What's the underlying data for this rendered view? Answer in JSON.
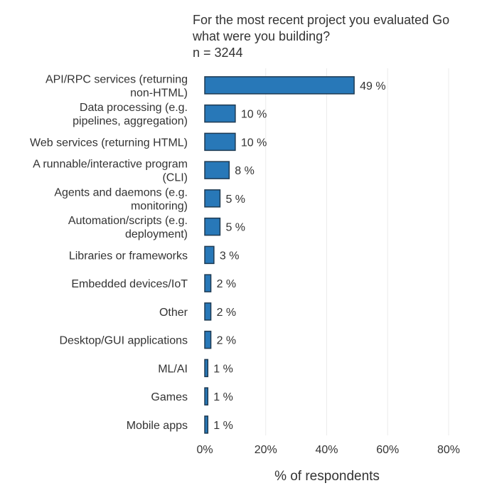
{
  "chart_data": {
    "type": "bar",
    "orientation": "horizontal",
    "title_lines": [
      "For the most recent project you evaluated Go",
      "what were you building?",
      "n = 3244"
    ],
    "categories": [
      [
        "API/RPC services (returning",
        "non-HTML)"
      ],
      [
        "Data processing (e.g.",
        "pipelines, aggregation)"
      ],
      [
        "Web services (returning HTML)"
      ],
      [
        "A runnable/interactive program",
        "(CLI)"
      ],
      [
        "Agents and daemons (e.g.",
        "monitoring)"
      ],
      [
        "Automation/scripts (e.g.",
        "deployment)"
      ],
      [
        "Libraries or frameworks"
      ],
      [
        "Embedded devices/IoT"
      ],
      [
        "Other"
      ],
      [
        "Desktop/GUI applications"
      ],
      [
        "ML/AI"
      ],
      [
        "Games"
      ],
      [
        "Mobile apps"
      ]
    ],
    "values": [
      49,
      10,
      10,
      8,
      5,
      5,
      3,
      2,
      2,
      2,
      1,
      1,
      1
    ],
    "value_labels": [
      "49 %",
      "10 %",
      "10 %",
      "8 %",
      "5 %",
      "5 %",
      "3 %",
      "2 %",
      "2 %",
      "2 %",
      "1 %",
      "1 %",
      "1 %"
    ],
    "xlabel": "% of respondents",
    "ylabel": "",
    "xlim": [
      0,
      80
    ],
    "xticks": [
      0,
      20,
      40,
      60,
      80
    ],
    "xtick_labels": [
      "0%",
      "20%",
      "40%",
      "60%",
      "80%"
    ],
    "grid": true,
    "colors": {
      "bar": "#2878b8",
      "bar_edge": "#1e3a52",
      "grid": "#ebebeb",
      "text": "#333333"
    }
  }
}
